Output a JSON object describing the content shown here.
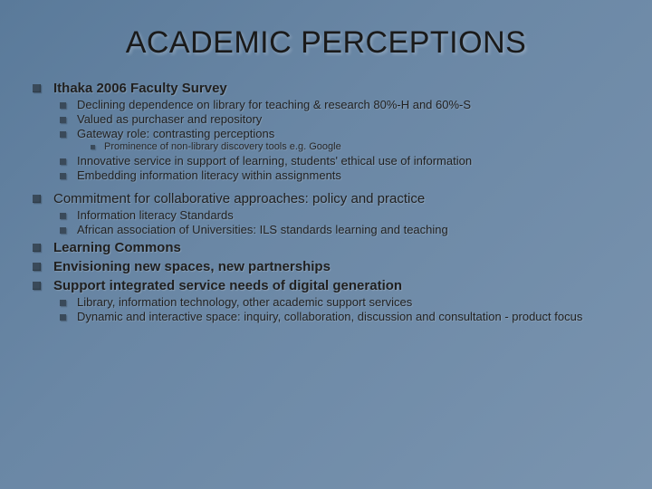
{
  "background": {
    "gradient_start": "#5a7a9a",
    "gradient_mid": "#6a87a5",
    "gradient_end": "#7a94af"
  },
  "title": {
    "text": "ACADEMIC PERCEPTIONS",
    "fontsize": 34,
    "color": "#1a1a1a"
  },
  "bullet_colors": {
    "level1": "#3a4a5a",
    "level2": "#3a4a5a",
    "level3": "#3a4a5a"
  },
  "font_sizes": {
    "level1": 15,
    "level2": 13,
    "level3": 11
  },
  "slide": {
    "l1": [
      {
        "text": "Ithaka 2006 Faculty Survey",
        "bold": true,
        "l2": [
          {
            "text": "Declining dependence on library for teaching & research 80%-H and 60%-S"
          },
          {
            "text": "Valued as purchaser and repository"
          },
          {
            "text": "Gateway role: contrasting perceptions",
            "l3": [
              {
                "text": "Prominence of non-library discovery tools e.g. Google"
              }
            ]
          },
          {
            "text": "Innovative service in support of learning, students' ethical use of information"
          },
          {
            "text": "Embedding information literacy within assignments"
          }
        ]
      },
      {
        "text": "Commitment  for collaborative approaches: policy and practice",
        "bold": false,
        "l2": [
          {
            "text": "Information literacy Standards"
          },
          {
            "text": "African association of Universities: ILS standards  learning and teaching"
          }
        ]
      },
      {
        "text": "Learning Commons",
        "bold": true
      },
      {
        "text": "Envisioning new spaces, new partnerships",
        "bold": true
      },
      {
        "text": "Support integrated service needs of digital generation",
        "bold": true,
        "l2": [
          {
            "text": "Library, information technology, other academic support services"
          },
          {
            "text": "Dynamic and interactive space: inquiry, collaboration, discussion and consultation - product focus"
          }
        ]
      }
    ]
  }
}
